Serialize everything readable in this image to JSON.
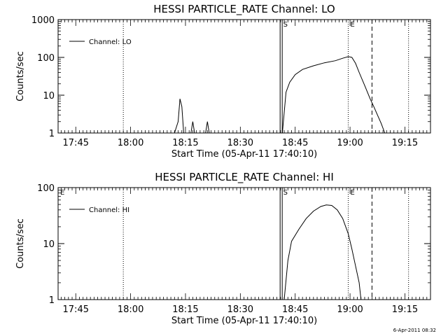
{
  "footer": {
    "timestamp": "6-Apr-2011 08:32"
  },
  "chart_data": [
    {
      "type": "line",
      "title": "HESSI PARTICLE_RATE Channel: LO",
      "xlabel": "Start Time (05-Apr-11 17:40:10)",
      "ylabel": "Counts/sec",
      "yscale": "log",
      "ylim": [
        1,
        1000
      ],
      "xlim": [
        "17:40:10",
        "19:22:00"
      ],
      "x_ticks": [
        "17:45",
        "18:00",
        "18:15",
        "18:30",
        "18:45",
        "19:00",
        "19:15"
      ],
      "y_ticks": [
        "1",
        "10",
        "100",
        "1000"
      ],
      "legend": {
        "placement": "top-left",
        "entries": [
          "Channel: LO"
        ]
      },
      "markers": [
        {
          "label": "",
          "time": "17:40:10",
          "style": "label"
        },
        {
          "label": "",
          "time": "17:58:00",
          "style": "dotted"
        },
        {
          "label": "S",
          "time": "18:41:10",
          "style": "double"
        },
        {
          "label": "E",
          "time": "18:59:30",
          "style": "dotted"
        },
        {
          "label": "",
          "time": "19:06:00",
          "style": "dashed"
        },
        {
          "label": "",
          "time": "19:16:00",
          "style": "dotted"
        }
      ],
      "series": [
        {
          "name": "Channel: LO",
          "segments": [
            {
              "x": [
                "18:12:00",
                "18:13:00",
                "18:13:30",
                "18:14:00",
                "18:14:30"
              ],
              "y": [
                1,
                2,
                8,
                5,
                1
              ]
            },
            {
              "x": [
                "18:16:30",
                "18:17:00",
                "18:17:30"
              ],
              "y": [
                1,
                2,
                1
              ]
            },
            {
              "x": [
                "18:20:30",
                "18:21:00",
                "18:21:30"
              ],
              "y": [
                1,
                2,
                1
              ]
            },
            {
              "x": [
                "18:41:30",
                "18:42:30",
                "18:43:30",
                "18:45:00",
                "18:47:00",
                "18:50:00",
                "18:53:00",
                "18:56:00",
                "18:58:00",
                "18:59:30",
                "19:00:30",
                "19:01:30",
                "19:02:30",
                "19:04:00",
                "19:05:30",
                "19:06:30",
                "19:07:30",
                "19:08:30",
                "19:09:30"
              ],
              "y": [
                1,
                12,
                22,
                35,
                48,
                60,
                72,
                82,
                95,
                105,
                100,
                70,
                40,
                18,
                8,
                5,
                3,
                1.8,
                1
              ]
            }
          ]
        }
      ]
    },
    {
      "type": "line",
      "title": "HESSI PARTICLE_RATE Channel: HI",
      "xlabel": "Start Time (05-Apr-11 17:40:10)",
      "ylabel": "Counts/sec",
      "yscale": "log",
      "ylim": [
        1,
        100
      ],
      "xlim": [
        "17:40:10",
        "19:22:00"
      ],
      "x_ticks": [
        "17:45",
        "18:00",
        "18:15",
        "18:30",
        "18:45",
        "19:00",
        "19:15"
      ],
      "y_ticks": [
        "1",
        "10",
        "100"
      ],
      "legend": {
        "placement": "top-left",
        "entries": [
          "Channel: HI"
        ]
      },
      "markers": [
        {
          "label": "E",
          "time": "17:40:10",
          "style": "label"
        },
        {
          "label": "",
          "time": "17:58:00",
          "style": "dotted"
        },
        {
          "label": "S",
          "time": "18:41:10",
          "style": "double"
        },
        {
          "label": "E",
          "time": "18:59:30",
          "style": "dotted"
        },
        {
          "label": "",
          "time": "19:06:00",
          "style": "dashed"
        },
        {
          "label": "",
          "time": "19:16:00",
          "style": "dotted"
        }
      ],
      "series": [
        {
          "name": "Channel: HI",
          "segments": [
            {
              "x": [
                "18:42:00",
                "18:43:00",
                "18:44:00",
                "18:46:00",
                "18:48:00",
                "18:50:00",
                "18:52:00",
                "18:53:30",
                "18:55:00",
                "18:56:30",
                "18:58:00",
                "18:59:30",
                "19:00:30",
                "19:01:30",
                "19:02:30",
                "19:03:00"
              ],
              "y": [
                1,
                5,
                11,
                18,
                28,
                38,
                46,
                49,
                48,
                40,
                28,
                15,
                8,
                4,
                2,
                1
              ]
            }
          ]
        }
      ]
    }
  ]
}
